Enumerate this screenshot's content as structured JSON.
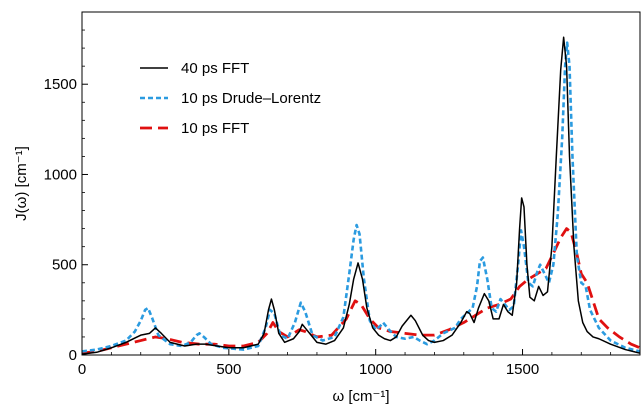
{
  "chart_data": {
    "type": "line",
    "xlabel": "ω [cm⁻¹]",
    "ylabel": "J(ω) [cm⁻¹]",
    "xlim": [
      0,
      1900
    ],
    "ylim": [
      0,
      1900
    ],
    "xticks": [
      0,
      500,
      1000,
      1500
    ],
    "yticks": [
      0,
      500,
      1000,
      1500
    ],
    "grid": false,
    "legend_position": "top-left",
    "series": [
      {
        "name": "40 ps FFT",
        "color": "#000000",
        "dash": "solid",
        "points": [
          [
            0,
            5
          ],
          [
            50,
            15
          ],
          [
            100,
            40
          ],
          [
            150,
            70
          ],
          [
            200,
            110
          ],
          [
            230,
            120
          ],
          [
            250,
            150
          ],
          [
            270,
            120
          ],
          [
            300,
            70
          ],
          [
            350,
            50
          ],
          [
            390,
            60
          ],
          [
            420,
            60
          ],
          [
            460,
            50
          ],
          [
            500,
            40
          ],
          [
            550,
            40
          ],
          [
            600,
            60
          ],
          [
            620,
            120
          ],
          [
            635,
            250
          ],
          [
            645,
            310
          ],
          [
            655,
            250
          ],
          [
            670,
            120
          ],
          [
            690,
            70
          ],
          [
            720,
            90
          ],
          [
            740,
            130
          ],
          [
            750,
            170
          ],
          [
            760,
            150
          ],
          [
            780,
            110
          ],
          [
            800,
            70
          ],
          [
            830,
            60
          ],
          [
            860,
            80
          ],
          [
            890,
            150
          ],
          [
            910,
            280
          ],
          [
            925,
            420
          ],
          [
            940,
            510
          ],
          [
            955,
            420
          ],
          [
            970,
            260
          ],
          [
            990,
            150
          ],
          [
            1010,
            110
          ],
          [
            1030,
            90
          ],
          [
            1050,
            80
          ],
          [
            1070,
            100
          ],
          [
            1090,
            160
          ],
          [
            1110,
            200
          ],
          [
            1120,
            220
          ],
          [
            1135,
            190
          ],
          [
            1160,
            110
          ],
          [
            1180,
            80
          ],
          [
            1200,
            70
          ],
          [
            1230,
            80
          ],
          [
            1260,
            110
          ],
          [
            1290,
            180
          ],
          [
            1310,
            240
          ],
          [
            1320,
            230
          ],
          [
            1335,
            180
          ],
          [
            1350,
            260
          ],
          [
            1370,
            340
          ],
          [
            1385,
            300
          ],
          [
            1400,
            200
          ],
          [
            1420,
            200
          ],
          [
            1435,
            280
          ],
          [
            1450,
            240
          ],
          [
            1465,
            220
          ],
          [
            1480,
            400
          ],
          [
            1490,
            700
          ],
          [
            1497,
            870
          ],
          [
            1505,
            820
          ],
          [
            1515,
            500
          ],
          [
            1525,
            320
          ],
          [
            1540,
            300
          ],
          [
            1555,
            380
          ],
          [
            1570,
            330
          ],
          [
            1585,
            350
          ],
          [
            1600,
            600
          ],
          [
            1615,
            1100
          ],
          [
            1630,
            1580
          ],
          [
            1640,
            1760
          ],
          [
            1650,
            1600
          ],
          [
            1660,
            1100
          ],
          [
            1675,
            600
          ],
          [
            1690,
            300
          ],
          [
            1705,
            180
          ],
          [
            1720,
            130
          ],
          [
            1740,
            100
          ],
          [
            1760,
            90
          ],
          [
            1800,
            60
          ],
          [
            1850,
            30
          ],
          [
            1900,
            10
          ]
        ]
      },
      {
        "name": "10 ps Drude–Lorentz",
        "color": "#2b9be0",
        "dash": "dotted",
        "points": [
          [
            0,
            20
          ],
          [
            50,
            30
          ],
          [
            100,
            50
          ],
          [
            150,
            80
          ],
          [
            180,
            130
          ],
          [
            200,
            190
          ],
          [
            215,
            250
          ],
          [
            225,
            260
          ],
          [
            240,
            200
          ],
          [
            260,
            110
          ],
          [
            300,
            60
          ],
          [
            340,
            50
          ],
          [
            370,
            70
          ],
          [
            390,
            110
          ],
          [
            400,
            120
          ],
          [
            415,
            100
          ],
          [
            440,
            60
          ],
          [
            480,
            40
          ],
          [
            550,
            30
          ],
          [
            600,
            50
          ],
          [
            625,
            150
          ],
          [
            640,
            250
          ],
          [
            655,
            230
          ],
          [
            675,
            110
          ],
          [
            700,
            90
          ],
          [
            725,
            180
          ],
          [
            745,
            290
          ],
          [
            760,
            240
          ],
          [
            785,
            110
          ],
          [
            820,
            80
          ],
          [
            860,
            100
          ],
          [
            890,
            210
          ],
          [
            910,
            450
          ],
          [
            925,
            640
          ],
          [
            935,
            720
          ],
          [
            945,
            670
          ],
          [
            960,
            420
          ],
          [
            980,
            190
          ],
          [
            1000,
            140
          ],
          [
            1015,
            160
          ],
          [
            1025,
            180
          ],
          [
            1045,
            140
          ],
          [
            1070,
            100
          ],
          [
            1100,
            90
          ],
          [
            1130,
            100
          ],
          [
            1150,
            80
          ],
          [
            1175,
            60
          ],
          [
            1200,
            80
          ],
          [
            1230,
            120
          ],
          [
            1270,
            150
          ],
          [
            1290,
            200
          ],
          [
            1310,
            230
          ],
          [
            1330,
            260
          ],
          [
            1345,
            380
          ],
          [
            1355,
            520
          ],
          [
            1365,
            540
          ],
          [
            1380,
            420
          ],
          [
            1395,
            260
          ],
          [
            1410,
            240
          ],
          [
            1425,
            310
          ],
          [
            1440,
            280
          ],
          [
            1455,
            250
          ],
          [
            1470,
            270
          ],
          [
            1485,
            500
          ],
          [
            1495,
            690
          ],
          [
            1505,
            600
          ],
          [
            1520,
            400
          ],
          [
            1535,
            380
          ],
          [
            1550,
            460
          ],
          [
            1560,
            500
          ],
          [
            1575,
            450
          ],
          [
            1590,
            400
          ],
          [
            1605,
            500
          ],
          [
            1620,
            780
          ],
          [
            1635,
            1200
          ],
          [
            1645,
            1600
          ],
          [
            1652,
            1730
          ],
          [
            1660,
            1600
          ],
          [
            1670,
            1100
          ],
          [
            1685,
            550
          ],
          [
            1700,
            400
          ],
          [
            1715,
            380
          ],
          [
            1730,
            250
          ],
          [
            1760,
            150
          ],
          [
            1800,
            80
          ],
          [
            1850,
            40
          ],
          [
            1900,
            20
          ]
        ]
      },
      {
        "name": "10 ps FFT",
        "color": "#e01010",
        "dash": "dashed",
        "points": [
          [
            0,
            10
          ],
          [
            50,
            20
          ],
          [
            100,
            40
          ],
          [
            150,
            60
          ],
          [
            200,
            80
          ],
          [
            250,
            100
          ],
          [
            290,
            90
          ],
          [
            340,
            70
          ],
          [
            400,
            60
          ],
          [
            450,
            60
          ],
          [
            500,
            50
          ],
          [
            550,
            50
          ],
          [
            600,
            70
          ],
          [
            630,
            120
          ],
          [
            650,
            180
          ],
          [
            670,
            130
          ],
          [
            700,
            100
          ],
          [
            740,
            140
          ],
          [
            760,
            130
          ],
          [
            800,
            100
          ],
          [
            850,
            110
          ],
          [
            900,
            200
          ],
          [
            930,
            300
          ],
          [
            950,
            280
          ],
          [
            980,
            200
          ],
          [
            1010,
            150
          ],
          [
            1050,
            130
          ],
          [
            1100,
            120
          ],
          [
            1150,
            110
          ],
          [
            1200,
            110
          ],
          [
            1250,
            140
          ],
          [
            1300,
            180
          ],
          [
            1350,
            230
          ],
          [
            1380,
            260
          ],
          [
            1420,
            280
          ],
          [
            1460,
            310
          ],
          [
            1490,
            380
          ],
          [
            1520,
            420
          ],
          [
            1550,
            450
          ],
          [
            1580,
            480
          ],
          [
            1610,
            580
          ],
          [
            1630,
            650
          ],
          [
            1650,
            700
          ],
          [
            1665,
            680
          ],
          [
            1685,
            560
          ],
          [
            1700,
            450
          ],
          [
            1720,
            400
          ],
          [
            1740,
            300
          ],
          [
            1760,
            200
          ],
          [
            1790,
            150
          ],
          [
            1830,
            100
          ],
          [
            1870,
            60
          ],
          [
            1900,
            40
          ]
        ]
      }
    ]
  }
}
